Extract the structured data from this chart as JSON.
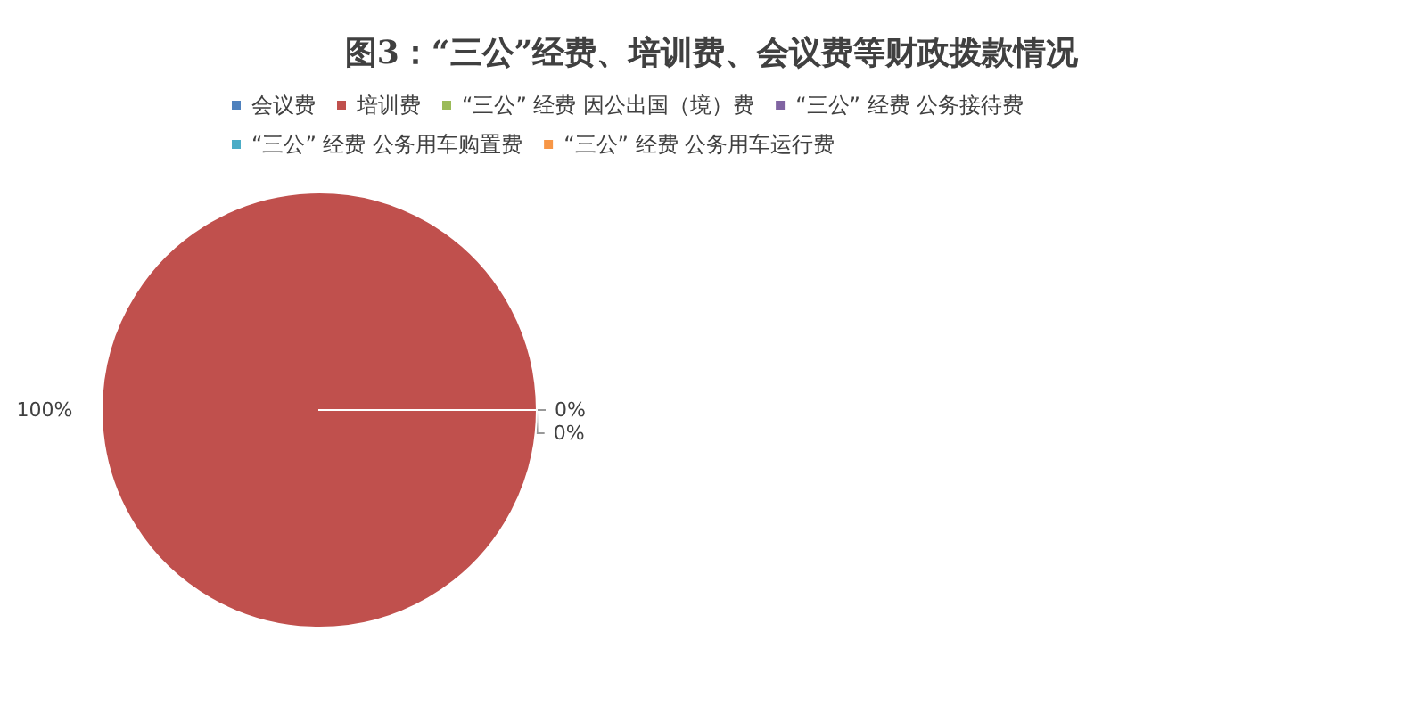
{
  "chart_data": {
    "type": "pie",
    "title": "图3：“三公”经费、培训费、会议费等财政拨款情况",
    "categories": [
      "会议费",
      "培训费",
      "“三公” 经费 因公出国（境）费",
      "“三公” 经费 公务接待费",
      "“三公” 经费 公务用车购置费",
      "“三公” 经费 公务用车运行费"
    ],
    "values": [
      0,
      100,
      0,
      0,
      0,
      0
    ],
    "colors": [
      "#4f81bd",
      "#c0504d",
      "#9bbb59",
      "#8064a2",
      "#4bacc6",
      "#f79646"
    ],
    "value_labels": [
      "0%",
      "100%",
      "0%",
      null,
      null,
      null
    ],
    "legend": "top"
  }
}
